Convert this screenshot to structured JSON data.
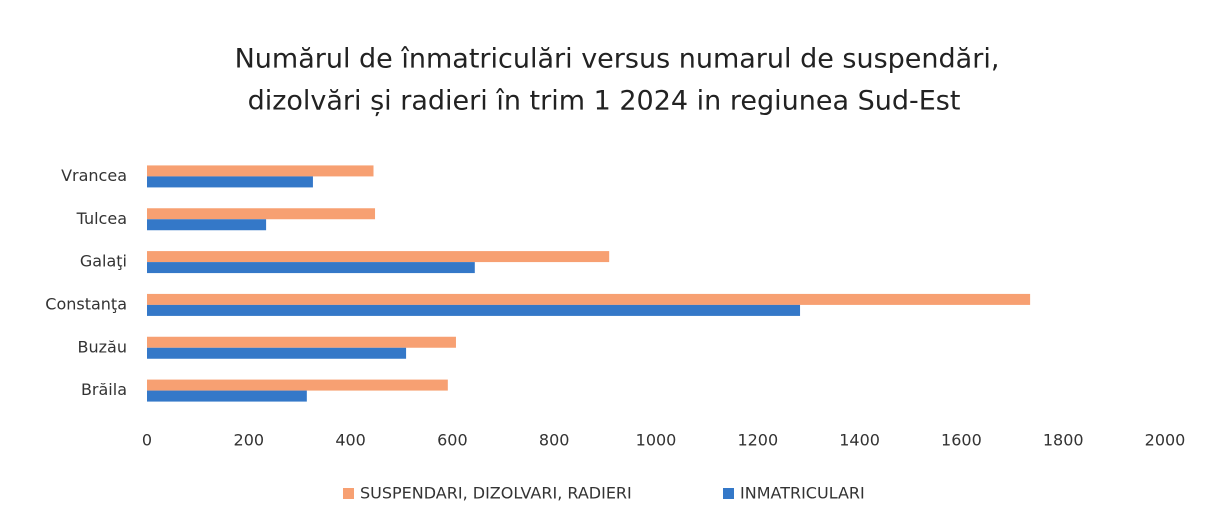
{
  "chart_data": {
    "type": "hbar",
    "title": [
      "Numărul de înmatriculări versus numarul de suspendări,",
      "dizolvări și radieri în trim 1 2024 in regiunea Sud-Est"
    ],
    "categories": [
      "Brăila",
      "Buzău",
      "Constanţa",
      "Galaţi",
      "Tulcea",
      "Vrancea"
    ],
    "series": [
      {
        "name": "SUSPENDARI, DIZOLVARI, RADIERI",
        "color": "#f7a072",
        "values": [
          591,
          607,
          1735,
          908,
          448,
          445
        ]
      },
      {
        "name": "INMATRICULARI",
        "color": "#3478c8",
        "values": [
          314,
          509,
          1283,
          644,
          234,
          326
        ]
      }
    ],
    "xlim": [
      0,
      2000
    ],
    "xticks": [
      0,
      200,
      400,
      600,
      800,
      1000,
      1200,
      1400,
      1600,
      1800,
      2000
    ],
    "legend": "bottom"
  }
}
